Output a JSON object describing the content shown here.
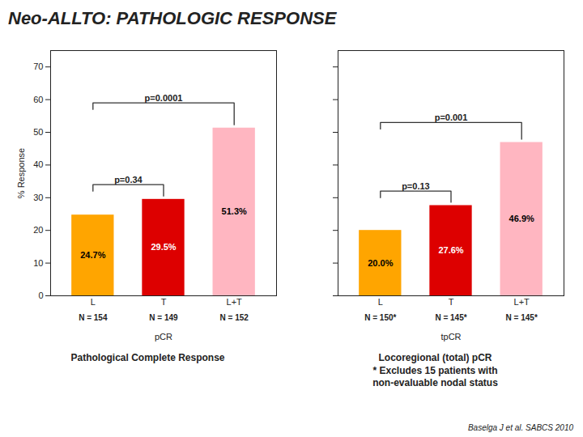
{
  "title": "Neo-ALLTO: PATHOLOGIC RESPONSE",
  "annotations": [
    "Baselga J et al. SABCS 2010"
  ],
  "chart_data": [
    {
      "type": "bar",
      "xlabel": "pCR",
      "ylabel": "% Response",
      "subtitle": "Pathological Complete Response",
      "categories": [
        "L",
        "T",
        "L+T"
      ],
      "n_labels": [
        "N = 154",
        "N = 149",
        "N = 152"
      ],
      "values": [
        24.7,
        29.5,
        51.3
      ],
      "value_labels": [
        "24.7%",
        "29.5%",
        "51.3%"
      ],
      "data_labels": true,
      "colors": [
        "#FFA500",
        "#DD0000",
        "#FFB6C1"
      ],
      "ylim": [
        0,
        75
      ],
      "yticks": [
        0,
        10,
        20,
        30,
        40,
        50,
        60,
        70
      ],
      "grid": false,
      "annotations": [
        {
          "text": "p=0.34",
          "from": "L",
          "to": "T",
          "y": 32
        },
        {
          "text": "p=0.0001",
          "from": "L",
          "to": "L+T",
          "y": 57
        }
      ]
    },
    {
      "type": "bar",
      "xlabel": "tpCR",
      "subtitle": "Locoregional (total) pCR\n* Excludes 15 patients with\nnon-evaluable nodal status",
      "categories": [
        "L",
        "T",
        "L+T"
      ],
      "n_labels": [
        "N = 150*",
        "N = 145*",
        "N = 145*"
      ],
      "values": [
        20.0,
        27.6,
        46.9
      ],
      "value_labels": [
        "20.0%",
        "27.6%",
        "46.9%"
      ],
      "data_labels": true,
      "colors": [
        "#FFA500",
        "#DD0000",
        "#FFB6C1"
      ],
      "ylim": [
        0,
        75
      ],
      "yticks": [
        0,
        10,
        20,
        30,
        40,
        50,
        60,
        70
      ],
      "grid": false,
      "tick_labels": "x",
      "annotations": [
        {
          "text": "p=0.13",
          "from": "L",
          "to": "T",
          "y": 30
        },
        {
          "text": "p=0.001",
          "from": "L",
          "to": "L+T",
          "y": 51
        }
      ]
    }
  ]
}
